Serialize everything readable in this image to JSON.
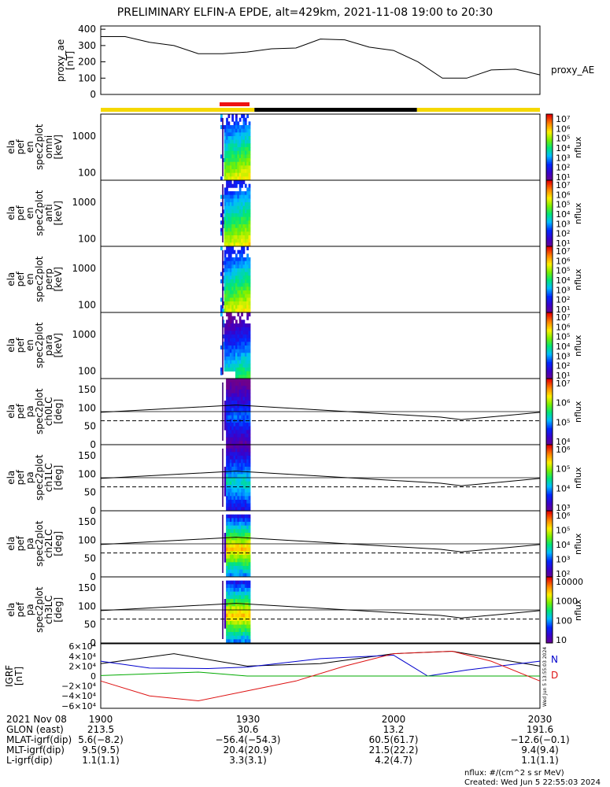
{
  "title": "PRELIMINARY ELFIN-A EPDE, alt=429km, 2021-11-08 19:00 to 20:30",
  "colors": {
    "bar_yellow": "#f5d800",
    "bar_black": "#000000",
    "bar_red": "#ee1111",
    "grf_n": "#0000cc",
    "grf_e": "#000000",
    "grf_d": "#dd1111",
    "grf_g": "#00aa00"
  },
  "chart_data": [
    {
      "type": "line",
      "name_panel": "proxy_ae",
      "ylabel": "proxy_ae\n[nT]",
      "legend": "proxy_AE",
      "yticks": [
        "400",
        "300",
        "200",
        "100",
        "0"
      ],
      "ylim": [
        0,
        420
      ],
      "x_minutes": [
        0,
        5,
        10,
        15,
        20,
        25,
        30,
        35,
        40,
        45,
        50,
        55,
        60,
        65,
        70,
        75,
        80,
        85,
        90
      ],
      "values": [
        355,
        355,
        320,
        300,
        250,
        250,
        260,
        280,
        285,
        340,
        335,
        290,
        270,
        200,
        100,
        100,
        150,
        155,
        120
      ]
    },
    {
      "type": "heatmap",
      "name_panel": "orbit-bar",
      "segments": [
        {
          "from": 0,
          "to": 35,
          "color": "yellow"
        },
        {
          "from": 35,
          "to": 72,
          "color": "black"
        },
        {
          "from": 72,
          "to": 100,
          "color": "yellow"
        }
      ],
      "red_marker": {
        "from": 27,
        "to": 34
      }
    },
    {
      "type": "heatmap",
      "ylabel": "ela\npef\nen\nspec2plot\nomni\n[keV]",
      "yticks": [
        "1000",
        "100"
      ],
      "cb_ticks": [
        "10⁷",
        "10⁶",
        "10⁵",
        "10⁴",
        "10³",
        "10²",
        "10¹"
      ],
      "cb_title": "nflux"
    },
    {
      "type": "heatmap",
      "ylabel": "ela\npef\nen\nspec2plot\nanti\n[keV]",
      "yticks": [
        "1000",
        "100"
      ],
      "cb_ticks": [
        "10⁷",
        "10⁶",
        "10⁵",
        "10⁴",
        "10³",
        "10²",
        "10¹"
      ],
      "cb_title": "nflux"
    },
    {
      "type": "heatmap",
      "ylabel": "ela\npef\nen\nspec2plot\nperp\n[keV]",
      "yticks": [
        "1000",
        "100"
      ],
      "cb_ticks": [
        "10⁷",
        "10⁶",
        "10⁵",
        "10⁴",
        "10³",
        "10²",
        "10¹"
      ],
      "cb_title": "nflux"
    },
    {
      "type": "heatmap",
      "ylabel": "ela\npef\nen\nspec2plot\npara\n[keV]",
      "yticks": [
        "1000",
        "100"
      ],
      "cb_ticks": [
        "10⁷",
        "10⁶",
        "10⁵",
        "10⁴",
        "10³",
        "10²",
        "10¹"
      ],
      "cb_title": "nflux"
    },
    {
      "type": "heatmap",
      "ylabel": "ela\npef\npa\nspec2plot\nch0LC\n[deg]",
      "yticks": [
        "150",
        "100",
        "50",
        "0"
      ],
      "cb_ticks": [
        "10⁷",
        "10⁶",
        "10⁵",
        "10⁴"
      ],
      "cb_title": "nflux"
    },
    {
      "type": "heatmap",
      "ylabel": "ela\npef\npa\nspec2plot\nch1LC\n[deg]",
      "yticks": [
        "150",
        "100",
        "50",
        "0"
      ],
      "cb_ticks": [
        "10⁶",
        "10⁵",
        "10⁴",
        "10³"
      ],
      "cb_title": "nflux"
    },
    {
      "type": "heatmap",
      "ylabel": "ela\npef\npa\nspec2plot\nch2LC\n[deg]",
      "yticks": [
        "150",
        "100",
        "50",
        "0"
      ],
      "cb_ticks": [
        "10⁶",
        "10⁵",
        "10⁴",
        "10³",
        "10²"
      ],
      "cb_title": "nflux"
    },
    {
      "type": "heatmap",
      "ylabel": "ela\npef\npa\nspec2plot\nch3LC\n[deg]",
      "yticks": [
        "150",
        "100",
        "50",
        "0"
      ],
      "cb_ticks": [
        "10000",
        "1000",
        "100",
        "10"
      ],
      "cb_title": "nflux"
    },
    {
      "type": "line",
      "name_panel": "igrf",
      "ylabel": "IGRF\n[nT]",
      "yticks": [
        "6×10⁴",
        "4×10⁴",
        "2×10⁴",
        "0",
        "−2×10⁴",
        "−4×10⁴",
        "−6×10⁴"
      ],
      "legend": [
        "N",
        "D"
      ]
    }
  ],
  "footer": {
    "labels": [
      "2021 Nov 08",
      "GLON (east)",
      "MLAT-igrf(dip)",
      "MLT-igrf(dip)",
      "L-igrf(dip)"
    ],
    "col1900": [
      "1900",
      "213.5",
      "5.6(−8.2)",
      "9.5(9.5)",
      "1.1(1.1)"
    ],
    "col1930": [
      "1930",
      "30.6",
      "−56.4(−54.3)",
      "20.4(20.9)",
      "3.3(3.1)"
    ],
    "col2000": [
      "2000",
      "13.2",
      "60.5(61.7)",
      "21.5(22.2)",
      "4.2(4.7)"
    ],
    "col2030": [
      "2030",
      "191.6",
      "−12.6(−0.1)",
      "9.4(9.4)",
      "1.1(1.1)"
    ],
    "units": "nflux: #/(cm^2 s sr MeV)",
    "created": "Created: Wed Jun  5 22:55:03 2024",
    "side_stamp": "Wed Jun 5 13:55:03 2024"
  }
}
